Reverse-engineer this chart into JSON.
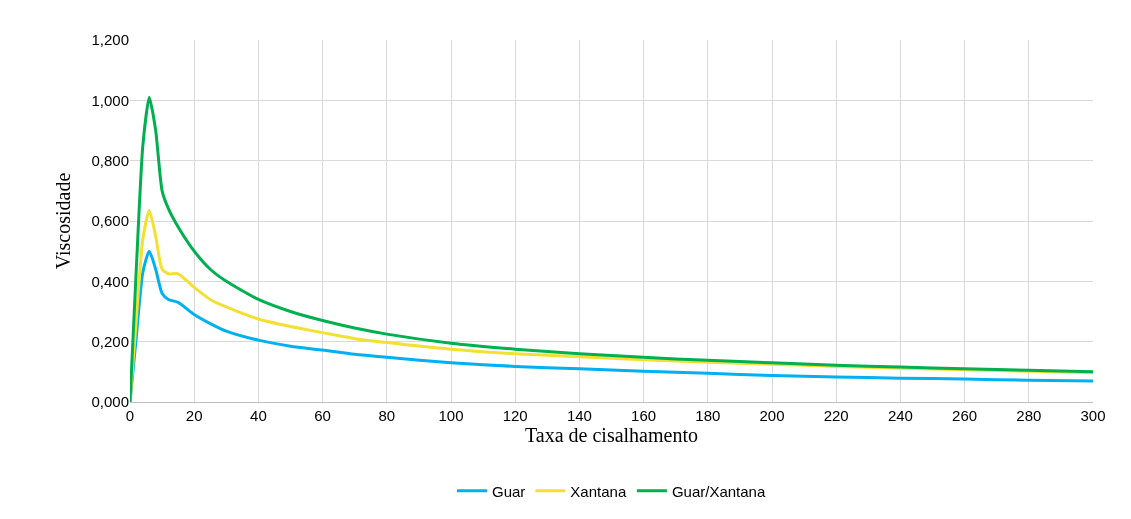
{
  "chart_data": {
    "type": "line",
    "xlabel": "Taxa de cisalhamento",
    "ylabel": "Viscosidade",
    "x": [
      0,
      2,
      4,
      6,
      8,
      10,
      12,
      15,
      20,
      25,
      30,
      40,
      50,
      60,
      70,
      80,
      100,
      120,
      140,
      160,
      180,
      200,
      220,
      240,
      260,
      280,
      300
    ],
    "series": [
      {
        "name": "Guar",
        "color": "#00b0f0",
        "values": [
          0,
          0.22,
          0.43,
          0.5,
          0.44,
          0.36,
          0.34,
          0.33,
          0.29,
          0.26,
          0.235,
          0.205,
          0.185,
          0.172,
          0.158,
          0.148,
          0.13,
          0.118,
          0.11,
          0.102,
          0.095,
          0.088,
          0.083,
          0.079,
          0.076,
          0.072,
          0.07
        ]
      },
      {
        "name": "Xantana",
        "color": "#f2e032",
        "values": [
          0,
          0.28,
          0.54,
          0.635,
          0.55,
          0.44,
          0.425,
          0.425,
          0.38,
          0.34,
          0.315,
          0.275,
          0.25,
          0.23,
          0.21,
          0.197,
          0.175,
          0.16,
          0.15,
          0.14,
          0.132,
          0.125,
          0.118,
          0.112,
          0.107,
          0.102,
          0.097
        ]
      },
      {
        "name": "Guar/Xantana",
        "color": "#00b050",
        "values": [
          0,
          0.45,
          0.85,
          1.01,
          0.9,
          0.7,
          0.64,
          0.58,
          0.5,
          0.44,
          0.4,
          0.34,
          0.3,
          0.27,
          0.245,
          0.225,
          0.195,
          0.175,
          0.16,
          0.148,
          0.138,
          0.13,
          0.122,
          0.116,
          0.11,
          0.105,
          0.1
        ]
      }
    ],
    "xlim": [
      0,
      300
    ],
    "xticks": [
      0,
      20,
      40,
      60,
      80,
      100,
      120,
      140,
      160,
      180,
      200,
      220,
      240,
      260,
      280,
      300
    ],
    "ylim": [
      0,
      1.2
    ],
    "yticks": [
      {
        "value": 0,
        "label": "0,000"
      },
      {
        "value": 0.2,
        "label": "0,200"
      },
      {
        "value": 0.4,
        "label": "0,400"
      },
      {
        "value": 0.6,
        "label": "0,600"
      },
      {
        "value": 0.8,
        "label": "0,800"
      },
      {
        "value": 1.0,
        "label": "1,000"
      },
      {
        "value": 1.2,
        "label": "1,200"
      }
    ],
    "grid": true,
    "legend": "bottom",
    "marker": "none",
    "line_style": "solid"
  }
}
